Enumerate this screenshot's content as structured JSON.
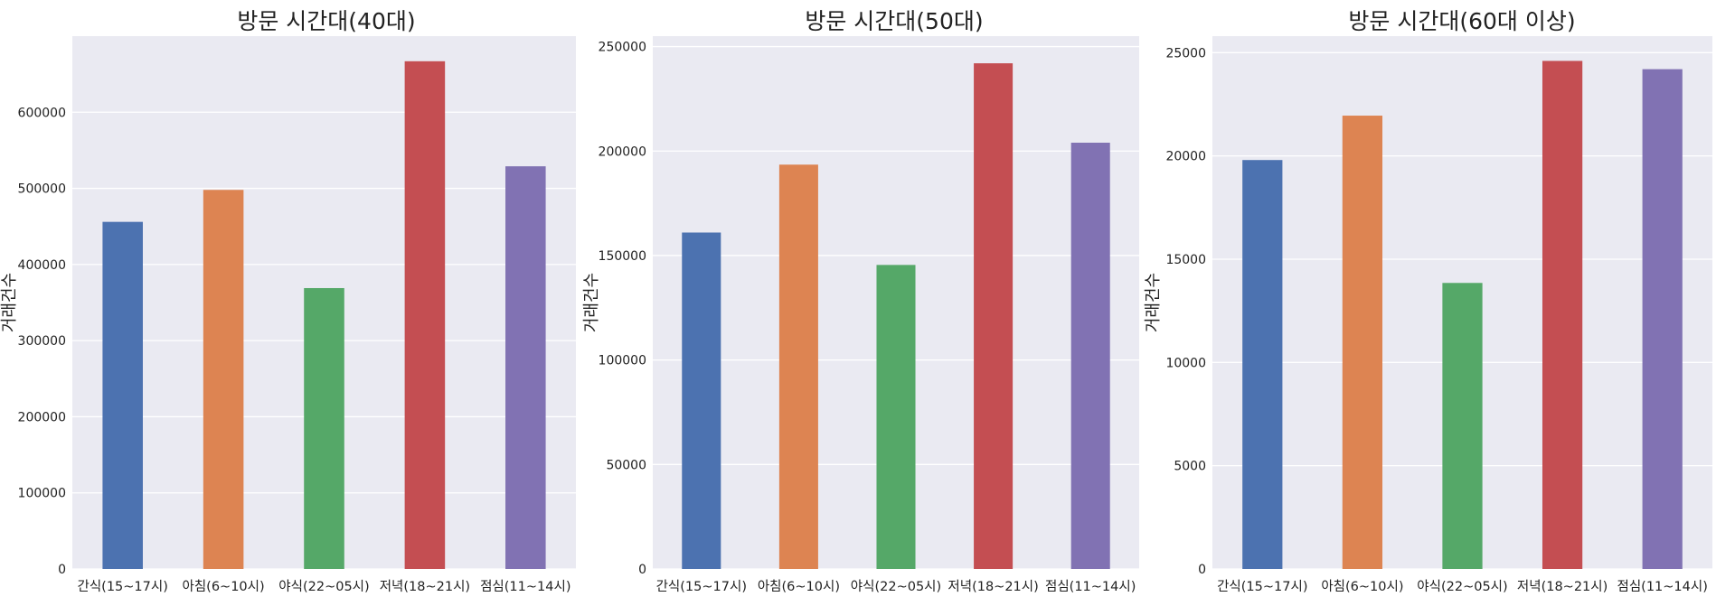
{
  "chart_data": [
    {
      "type": "bar",
      "title": "방문 시간대(40대)",
      "xlabel": "",
      "ylabel": "거래건수",
      "categories": [
        "간식(15~17시)",
        "아침(6~10시)",
        "야식(22~05시)",
        "저녁(18~21시)",
        "점심(11~14시)"
      ],
      "values": [
        456000,
        498000,
        369000,
        667000,
        529000
      ],
      "ylim": [
        0,
        700000
      ],
      "yticks": [
        0,
        100000,
        200000,
        300000,
        400000,
        500000,
        600000
      ],
      "ytick_labels": [
        "0",
        "100000",
        "200000",
        "300000",
        "400000",
        "500000",
        "600000"
      ],
      "grid": true
    },
    {
      "type": "bar",
      "title": "방문 시간대(50대)",
      "xlabel": "",
      "ylabel": "거래건수",
      "categories": [
        "간식(15~17시)",
        "아침(6~10시)",
        "야식(22~05시)",
        "저녁(18~21시)",
        "점심(11~14시)"
      ],
      "values": [
        161000,
        193500,
        145500,
        242000,
        204000
      ],
      "ylim": [
        0,
        255000
      ],
      "yticks": [
        0,
        50000,
        100000,
        150000,
        200000,
        250000
      ],
      "ytick_labels": [
        "0",
        "50000",
        "100000",
        "150000",
        "200000",
        "250000"
      ],
      "grid": true
    },
    {
      "type": "bar",
      "title": "방문 시간대(60대 이상)",
      "xlabel": "",
      "ylabel": "거래건수",
      "categories": [
        "간식(15~17시)",
        "아침(6~10시)",
        "야식(22~05시)",
        "저녁(18~21시)",
        "점심(11~14시)"
      ],
      "values": [
        19800,
        21950,
        13850,
        24600,
        24200
      ],
      "ylim": [
        0,
        25800
      ],
      "yticks": [
        0,
        5000,
        10000,
        15000,
        20000,
        25000
      ],
      "ytick_labels": [
        "0",
        "5000",
        "10000",
        "15000",
        "20000",
        "25000"
      ],
      "grid": true
    }
  ],
  "colors": {
    "background": "#eaeaf2",
    "grid": "#ffffff",
    "bars": [
      "#4c72b0",
      "#dd8452",
      "#55a868",
      "#c44e52",
      "#8172b3"
    ]
  }
}
